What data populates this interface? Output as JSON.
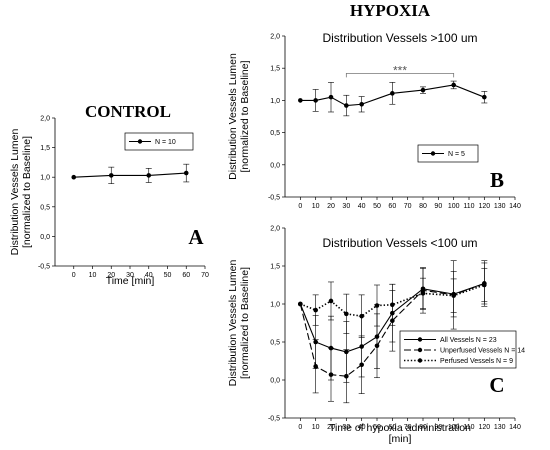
{
  "headings": {
    "control": "CONTROL",
    "hypoxia": "HYPOXIA"
  },
  "chart_data": [
    {
      "panel": "A",
      "type": "line",
      "title": "",
      "xlabel": "Time [min]",
      "ylabel_lines": [
        "Distribution Vessels Lumen",
        "[normalized to Baseline]"
      ],
      "xlim": [
        -10,
        70
      ],
      "ylim": [
        -0.5,
        2.0
      ],
      "xticks": [
        0,
        10,
        20,
        30,
        40,
        50,
        60,
        70
      ],
      "yticks": [
        "-0,5",
        "0,0",
        "0,5",
        "1,0",
        "1,5",
        "2,0"
      ],
      "series": [
        {
          "name": "N = 10",
          "style": "solid",
          "x": [
            0,
            20,
            40,
            60
          ],
          "y": [
            1.0,
            1.03,
            1.03,
            1.07
          ],
          "err": [
            0,
            0.14,
            0.12,
            0.15
          ]
        }
      ]
    },
    {
      "panel": "B",
      "type": "line",
      "title": "Distribution Vessels >100 um",
      "xlabel": "",
      "ylabel_lines": [
        "Distribution Vessels Lumen",
        "[normalized to Baseline]"
      ],
      "xlim": [
        -10,
        140
      ],
      "ylim": [
        -0.5,
        2.0
      ],
      "xticks": [
        0,
        10,
        20,
        30,
        40,
        50,
        60,
        70,
        80,
        90,
        100,
        110,
        120,
        130,
        140
      ],
      "yticks": [
        "-0,5",
        "0,0",
        "0,5",
        "1,0",
        "1,5",
        "2,0"
      ],
      "annotation": {
        "text": "***",
        "x_from": 30,
        "x_to": 100,
        "y": 1.42
      },
      "series": [
        {
          "name": "N = 5",
          "style": "solid",
          "x": [
            0,
            10,
            20,
            30,
            40,
            60,
            80,
            100,
            120
          ],
          "y": [
            1.0,
            1.0,
            1.05,
            0.92,
            0.94,
            1.11,
            1.16,
            1.24,
            1.05
          ],
          "err": [
            0,
            0.17,
            0.23,
            0.16,
            0.12,
            0.17,
            0.05,
            0.06,
            0.09
          ]
        }
      ]
    },
    {
      "panel": "C",
      "type": "line",
      "title": "Distribution Vessels <100 um",
      "xlabel_lines": [
        "Time of hypoxia administration",
        "[min]"
      ],
      "ylabel_lines": [
        "Distribution Vessels Lumen",
        "[normalized to Baseline]"
      ],
      "xlim": [
        -10,
        140
      ],
      "ylim": [
        -0.5,
        2.0
      ],
      "xticks": [
        0,
        10,
        20,
        30,
        40,
        50,
        60,
        70,
        80,
        90,
        100,
        110,
        120,
        130,
        140
      ],
      "yticks": [
        "-0,5",
        "0,0",
        "0,5",
        "1,0",
        "1,5",
        "2,0"
      ],
      "series": [
        {
          "name": "All Vessels N = 23",
          "style": "solid",
          "x": [
            0,
            10,
            20,
            30,
            40,
            50,
            60,
            80,
            100,
            120
          ],
          "y": [
            1.0,
            0.5,
            0.42,
            0.37,
            0.44,
            0.57,
            0.88,
            1.2,
            1.13,
            1.27
          ],
          "err": [
            0,
            0.35,
            0.42,
            0.4,
            0.4,
            0.42,
            0.38,
            0.27,
            0.3,
            0.27
          ]
        },
        {
          "name": "Unperfused Vessels N = 14",
          "style": "dash",
          "x": [
            0,
            10,
            20,
            30,
            40,
            50,
            60,
            80,
            100,
            120
          ],
          "y": [
            1.0,
            0.18,
            0.07,
            0.05,
            0.2,
            0.45,
            0.78,
            1.18,
            1.12,
            1.27
          ],
          "err": [
            0,
            0.35,
            0.35,
            0.35,
            0.38,
            0.42,
            0.4,
            0.3,
            0.45,
            0.3
          ]
        },
        {
          "name": "Perfused Vessels N = 9",
          "style": "dot",
          "x": [
            0,
            10,
            20,
            30,
            40,
            50,
            60,
            80,
            100,
            120
          ],
          "y": [
            1.0,
            0.92,
            1.04,
            0.87,
            0.84,
            0.98,
            0.99,
            1.14,
            1.11,
            1.25
          ],
          "err": [
            0,
            0.2,
            0.25,
            0.26,
            0.28,
            0.27,
            0.27,
            0.2,
            0.22,
            0.22
          ]
        }
      ]
    }
  ]
}
